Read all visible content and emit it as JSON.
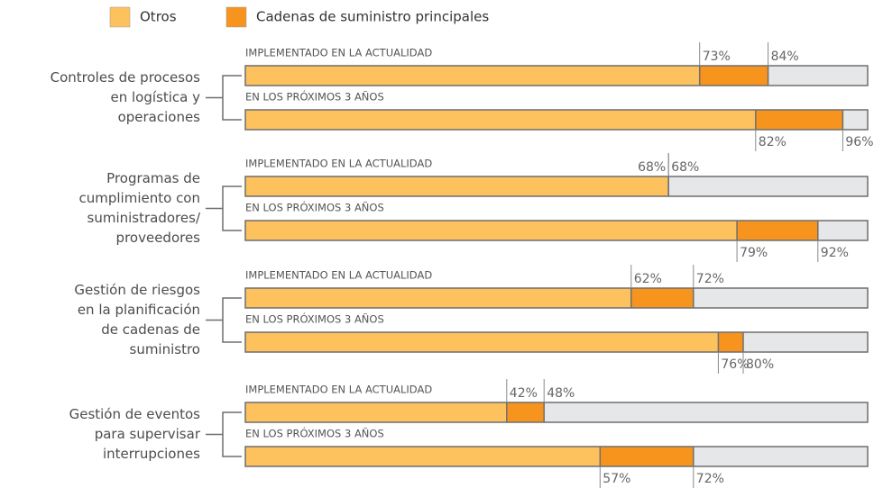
{
  "chart_data": {
    "type": "bar",
    "groups": [
      {
        "label": [
          "Controles de procesos",
          "en logística y",
          "operaciones"
        ]
      },
      {
        "label": [
          "Programas de",
          "cumplimiento con",
          "suministradores/",
          "proveedores"
        ]
      },
      {
        "label": [
          "Gestión de riesgos",
          "en la planificación",
          "de cadenas de",
          "suministro"
        ]
      },
      {
        "label": [
          "Gestión de eventos",
          "para supervisar",
          "interrupciones"
        ]
      }
    ],
    "row_labels": [
      "IMPLEMENTADO EN LA ACTUALIDAD",
      "EN LOS PRÓXIMOS 3 AÑOS"
    ],
    "series": [
      {
        "name": "Otros",
        "color": "#fdc15e",
        "values": [
          73,
          82,
          68,
          79,
          62,
          76,
          42,
          57
        ],
        "value_labels": [
          "73%",
          "82%",
          "68%",
          "79%",
          "62%",
          "76%",
          "42%",
          "57%"
        ]
      },
      {
        "name": "Cadenas de suministro principales",
        "color": "#f7941d",
        "values": [
          84,
          96,
          68,
          92,
          72,
          80,
          48,
          72
        ],
        "value_labels": [
          "84%",
          "96%",
          "68%",
          "92%",
          "72%",
          "80%",
          "48%",
          "72%"
        ]
      }
    ],
    "background_color": "#e6e7e8",
    "xlim": [
      0,
      100
    ]
  }
}
